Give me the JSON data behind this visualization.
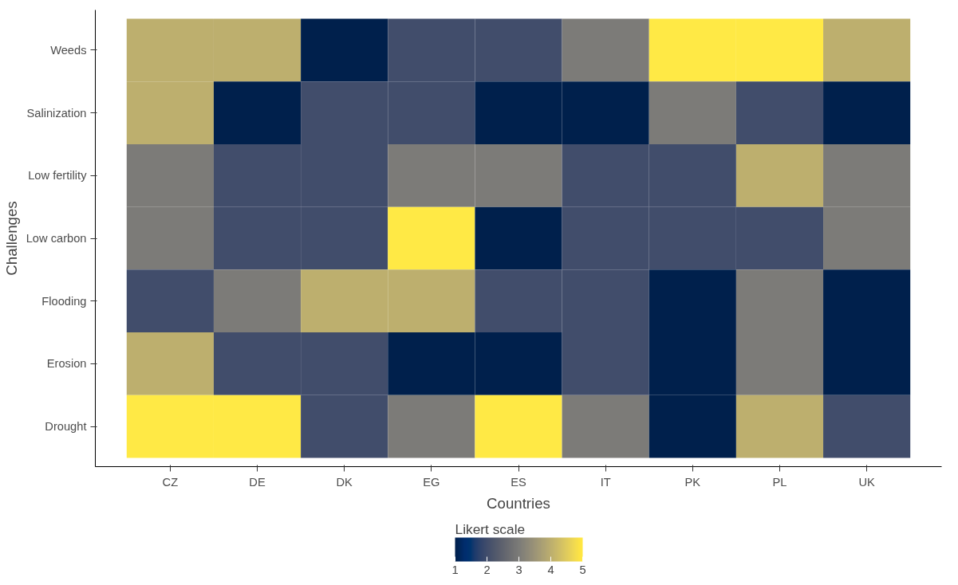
{
  "chart_data": {
    "type": "heatmap",
    "xlabel": "Countries",
    "ylabel": "Challenges",
    "clabel": "Likert scale",
    "categories": [
      "CZ",
      "DE",
      "DK",
      "EG",
      "ES",
      "IT",
      "PK",
      "PL",
      "UK"
    ],
    "y_categories": [
      "Weeds",
      "Salinization",
      "Low fertility",
      "Low carbon",
      "Flooding",
      "Erosion",
      "Drought"
    ],
    "cells": [
      [
        4,
        4,
        1,
        2,
        2,
        3,
        5,
        5,
        4
      ],
      [
        4,
        1,
        2,
        2,
        1,
        1,
        3,
        2,
        1
      ],
      [
        3,
        2,
        2,
        3,
        3,
        2,
        2,
        4,
        3
      ],
      [
        3,
        2,
        2,
        5,
        1,
        2,
        2,
        2,
        3
      ],
      [
        2,
        3,
        4,
        4,
        2,
        2,
        1,
        3,
        1
      ],
      [
        4,
        2,
        2,
        1,
        1,
        2,
        1,
        3,
        1
      ],
      [
        5,
        5,
        2,
        3,
        5,
        3,
        1,
        4,
        2
      ]
    ],
    "clim": [
      1,
      5
    ],
    "cticks": [
      1,
      2,
      3,
      4,
      5
    ],
    "grid": false
  }
}
